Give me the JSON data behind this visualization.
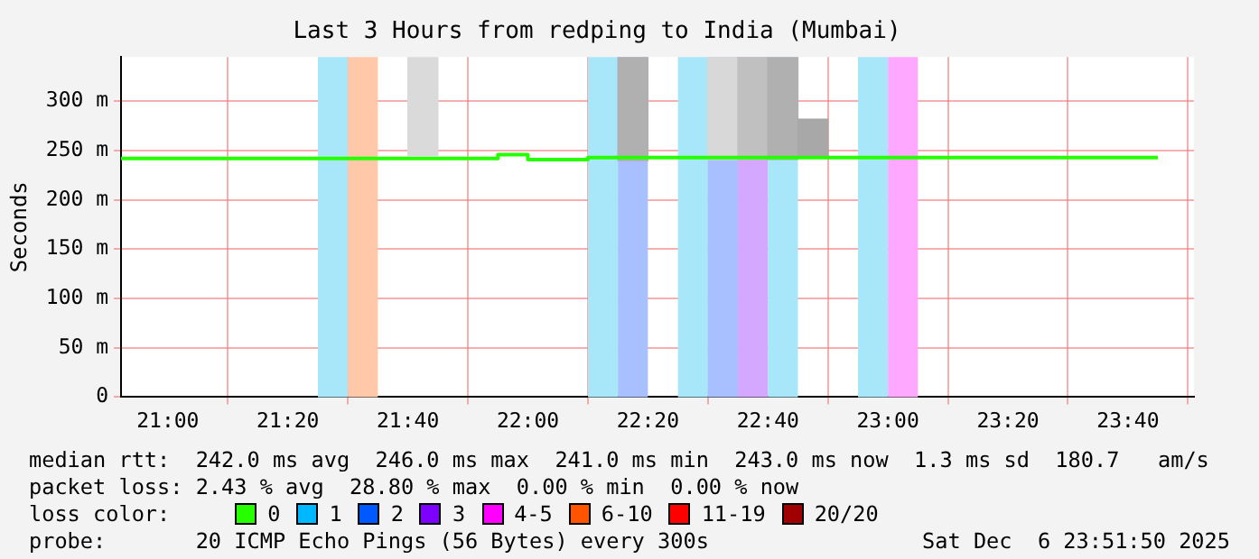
{
  "chart_data": {
    "type": "step",
    "title": "Last 3 Hours from redping to India (Mumbai)",
    "ylabel": "Seconds",
    "xlim": [
      20.87,
      23.85
    ],
    "ylim": [
      0,
      345
    ],
    "xticks": [
      {
        "value": 21,
        "label": "21:00"
      },
      {
        "value": 21.3333,
        "label": "21:20"
      },
      {
        "value": 21.6667,
        "label": "21:40"
      },
      {
        "value": 22,
        "label": "22:00"
      },
      {
        "value": 22.3333,
        "label": "22:20"
      },
      {
        "value": 22.6667,
        "label": "22:40"
      },
      {
        "value": 23,
        "label": "23:00"
      },
      {
        "value": 23.3333,
        "label": "23:20"
      },
      {
        "value": 23.6667,
        "label": "23:40"
      }
    ],
    "yticks": [
      0,
      {
        "value": 50,
        "label": "50 m"
      },
      {
        "value": 100,
        "label": "100 m"
      },
      {
        "value": 150,
        "label": "150 m"
      },
      {
        "value": 200,
        "label": "200 m"
      },
      {
        "value": 250,
        "label": "250 m"
      },
      {
        "value": 300,
        "label": "300 m"
      }
    ],
    "grid": true,
    "legend": "bottom left",
    "legend_title": "loss color:",
    "series": [
      {
        "type": "bar",
        "x": [
          21.7083,
          22.2917,
          22.5417,
          22.625,
          22.7083,
          22.7917
        ],
        "base": [
          245,
          240,
          241,
          241,
          241,
          243
        ],
        "values": [
          100,
          105,
          104,
          104,
          104,
          39
        ],
        "colors": [
          "#dadada",
          "#b0b0b0",
          "#d8d8d8",
          "#c0c0c0",
          "#b0b0b0",
          "#a8a8a8"
        ]
      },
      {
        "color": "#26ff00",
        "x": [
          20.87,
          21.9167,
          22.0,
          22.1667,
          22.75,
          23.75
        ],
        "values": [
          241,
          242,
          246,
          241,
          243,
          243
        ]
      },
      {
        "type": "bar",
        "name": "0",
        "color": "#26ff00"
      },
      {
        "type": "bar",
        "name": "1",
        "color": "#00b8ff"
      },
      {
        "type": "bar",
        "name": "2",
        "color": "#0059ff"
      },
      {
        "type": "bar",
        "name": "3",
        "color": "#7e00ff"
      },
      {
        "type": "bar",
        "name": "4-5",
        "color": "#ff00ff"
      },
      {
        "type": "bar",
        "name": "6-10",
        "color": "#ff5500"
      },
      {
        "type": "bar",
        "name": "11-19",
        "color": "#ff0000"
      },
      {
        "type": "bar",
        "name": "20/20",
        "color": "#a10000"
      }
    ],
    "bands": [
      {
        "axis": "x",
        "from": 21.4167,
        "to": 21.5,
        "color": "#a8e6fa"
      },
      {
        "axis": "x",
        "from": 21.5,
        "to": 21.5833,
        "color": "#ffc8a8"
      },
      {
        "axis": "x",
        "from": 22.1667,
        "to": 22.25,
        "color": "#a8e6fa"
      },
      {
        "axis": "x",
        "from": 22.25,
        "to": 22.3333,
        "color": "#a8c0ff"
      },
      {
        "axis": "x",
        "from": 22.4167,
        "to": 22.5,
        "color": "#a8e6fa"
      },
      {
        "axis": "x",
        "from": 22.5,
        "to": 22.5833,
        "color": "#a8c0ff"
      },
      {
        "axis": "x",
        "from": 22.5833,
        "to": 22.6667,
        "color": "#d4a8ff"
      },
      {
        "axis": "x",
        "from": 22.6667,
        "to": 22.75,
        "color": "#a8e6fa"
      },
      {
        "axis": "x",
        "from": 22.9167,
        "to": 23.0,
        "color": "#a8e6fa"
      },
      {
        "axis": "x",
        "from": 23.0,
        "to": 23.0833,
        "color": "#ffa8ff"
      }
    ],
    "annotations": [
      "median rtt:  242.0 ms avg  246.0 ms max  241.0 ms min  243.0 ms now  1.3 ms sd  180.7   am/s",
      "packet loss: 2.43 % avg  28.80 % max  0.00 % min  0.00 % now",
      "probe:       20 ICMP Echo Pings (56 Bytes) every 300s",
      "Sat Dec  6 23:51:50 2025"
    ]
  }
}
